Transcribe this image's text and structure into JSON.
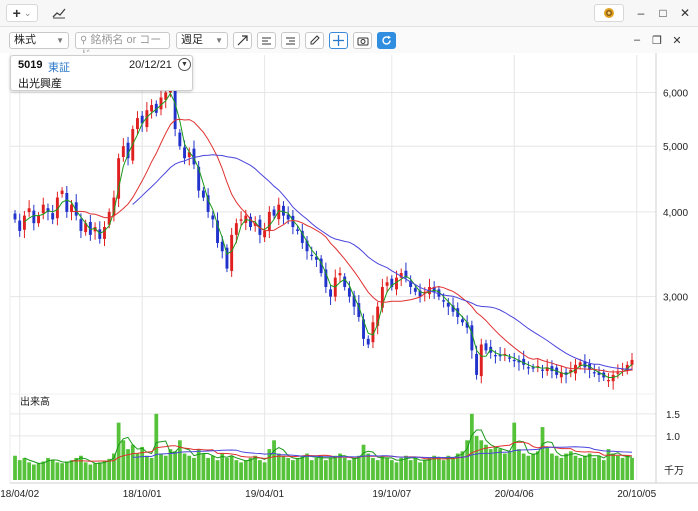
{
  "window": {
    "new_tab_label": "+",
    "new_tab_caret": "⌄",
    "window_controls": [
      "–",
      "□",
      "✕"
    ]
  },
  "toolbar": {
    "market_select": "株式",
    "search_placeholder": "銘柄名 or コード",
    "period_select": "週足",
    "tools": [
      "trend-line-tool",
      "horizontal-line-tool",
      "fibonacci-tool",
      "pencil-tool",
      "crosshair-tool",
      "screenshot-tool",
      "refresh-tool"
    ]
  },
  "info": {
    "code": "5019",
    "exchange": "東証",
    "date": "20/12/21",
    "name": "出光興産"
  },
  "colors": {
    "up_candle": "#e02020",
    "down_candle": "#2233cc",
    "ma_short": "#1a9a1a",
    "ma_mid": "#e03030",
    "ma_long": "#4a44dd",
    "volume_bar": "#55c23a",
    "accent": "#2f8ee0"
  },
  "chart_data": {
    "type": "candlestick",
    "price_axis": {
      "ticks": [
        3000,
        4000,
        5000,
        6000
      ],
      "tick_labels": [
        "3,000",
        "4,000",
        "5,000",
        "6,000"
      ],
      "ylim": [
        2200,
        6700
      ],
      "scale": "log",
      "position": "right"
    },
    "volume_axis": {
      "title": "出来高",
      "unit": "千万",
      "ticks": [
        1.0,
        1.5
      ],
      "tick_labels": [
        "1.0",
        "1.5"
      ],
      "ylim": [
        0,
        1.7
      ]
    },
    "x_labels": [
      {
        "label": "18/04/02",
        "week": 1
      },
      {
        "label": "18/10/01",
        "week": 27
      },
      {
        "label": "19/04/01",
        "week": 53
      },
      {
        "label": "19/10/07",
        "week": 80
      },
      {
        "label": "20/04/06",
        "week": 106
      },
      {
        "label": "20/10/05",
        "week": 132
      }
    ],
    "grid": true,
    "closes": [
      3900,
      3750,
      3950,
      4050,
      3850,
      3950,
      4100,
      4000,
      3900,
      4200,
      4300,
      4000,
      4100,
      3950,
      3750,
      3850,
      3700,
      3800,
      3650,
      3800,
      4000,
      4200,
      4800,
      5000,
      4800,
      5300,
      5500,
      5400,
      5650,
      5750,
      5600,
      5900,
      6000,
      6050,
      5300,
      5000,
      4800,
      4900,
      4700,
      4300,
      4200,
      4000,
      3900,
      3600,
      3500,
      3300,
      3700,
      3850,
      3900,
      3950,
      3800,
      3850,
      3700,
      3750,
      4000,
      3950,
      4100,
      3950,
      3900,
      3800,
      3750,
      3600,
      3500,
      3450,
      3400,
      3250,
      3100,
      3000,
      3200,
      3250,
      3100,
      3000,
      2900,
      2800,
      2600,
      2550,
      2750,
      2900,
      3100,
      3150,
      3100,
      3200,
      3250,
      3200,
      3100,
      3050,
      3000,
      3050,
      3100,
      3050,
      3000,
      2950,
      2900,
      2850,
      2800,
      2750,
      2700,
      2500,
      2300,
      2550,
      2500,
      2480,
      2460,
      2450,
      2470,
      2430,
      2410,
      2400,
      2380,
      2360,
      2350,
      2370,
      2340,
      2360,
      2330,
      2300,
      2320,
      2300,
      2340,
      2380,
      2400,
      2360,
      2340,
      2320,
      2300,
      2280,
      2260,
      2300,
      2320,
      2350,
      2380,
      2420
    ],
    "volume": [
      0.55,
      0.45,
      0.5,
      0.4,
      0.35,
      0.38,
      0.42,
      0.5,
      0.45,
      0.4,
      0.38,
      0.42,
      0.45,
      0.5,
      0.55,
      0.4,
      0.35,
      0.38,
      0.4,
      0.42,
      0.48,
      0.6,
      1.3,
      0.9,
      0.7,
      0.8,
      0.6,
      0.75,
      0.55,
      0.5,
      1.5,
      0.6,
      0.55,
      0.7,
      0.65,
      0.9,
      0.6,
      0.55,
      0.5,
      0.7,
      0.6,
      0.5,
      0.55,
      0.45,
      0.6,
      0.5,
      0.55,
      0.45,
      0.4,
      0.45,
      0.5,
      0.55,
      0.45,
      0.4,
      0.7,
      0.9,
      0.6,
      0.55,
      0.5,
      0.45,
      0.5,
      0.55,
      0.6,
      0.45,
      0.5,
      0.55,
      0.45,
      0.5,
      0.55,
      0.6,
      0.5,
      0.45,
      0.5,
      0.55,
      0.8,
      0.6,
      0.5,
      0.45,
      0.55,
      0.5,
      0.45,
      0.4,
      0.5,
      0.55,
      0.45,
      0.5,
      0.4,
      0.45,
      0.5,
      0.55,
      0.5,
      0.45,
      0.55,
      0.5,
      0.6,
      0.65,
      0.9,
      1.5,
      1.0,
      0.9,
      0.8,
      0.7,
      0.75,
      0.7,
      0.6,
      0.65,
      1.3,
      0.7,
      0.6,
      0.55,
      0.6,
      0.65,
      1.2,
      0.75,
      0.6,
      0.55,
      0.5,
      0.6,
      0.65,
      0.55,
      0.5,
      0.55,
      0.6,
      0.5,
      0.55,
      0.45,
      0.7,
      0.6,
      0.55,
      0.5,
      0.55,
      0.5
    ]
  }
}
